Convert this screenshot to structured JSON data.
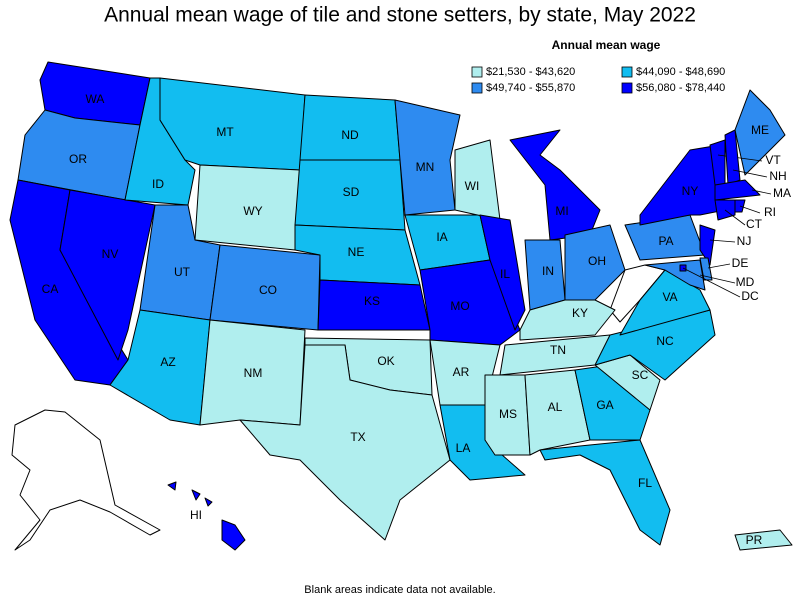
{
  "title": "Annual mean wage of tile and stone setters, by state, May 2022",
  "legend": {
    "title": "Annual mean wage",
    "items": [
      {
        "label": "$21,530 - $43,620",
        "color": "#b0eeee"
      },
      {
        "label": "$44,090 - $48,690",
        "color": "#12bdf0"
      },
      {
        "label": "$49,740 - $55,870",
        "color": "#2e8bf0"
      },
      {
        "label": "$56,080 - $78,440",
        "color": "#0000ff"
      }
    ]
  },
  "states": [
    {
      "label": "WA",
      "tier": 3
    },
    {
      "label": "OR",
      "tier": 2
    },
    {
      "label": "CA",
      "tier": 3
    },
    {
      "label": "NV",
      "tier": 3
    },
    {
      "label": "ID",
      "tier": 1
    },
    {
      "label": "MT",
      "tier": 1
    },
    {
      "label": "WY",
      "tier": 0
    },
    {
      "label": "UT",
      "tier": 2
    },
    {
      "label": "CO",
      "tier": 2
    },
    {
      "label": "AZ",
      "tier": 1
    },
    {
      "label": "NM",
      "tier": 0
    },
    {
      "label": "ND",
      "tier": 1
    },
    {
      "label": "SD",
      "tier": 1
    },
    {
      "label": "NE",
      "tier": 1
    },
    {
      "label": "KS",
      "tier": 3
    },
    {
      "label": "OK",
      "tier": 0
    },
    {
      "label": "TX",
      "tier": 0
    },
    {
      "label": "MN",
      "tier": 2
    },
    {
      "label": "IA",
      "tier": 1
    },
    {
      "label": "MO",
      "tier": 3
    },
    {
      "label": "AR",
      "tier": 0
    },
    {
      "label": "LA",
      "tier": 1
    },
    {
      "label": "WI",
      "tier": 0
    },
    {
      "label": "IL",
      "tier": 3
    },
    {
      "label": "MI",
      "tier": 3
    },
    {
      "label": "IN",
      "tier": 2
    },
    {
      "label": "OH",
      "tier": 2
    },
    {
      "label": "KY",
      "tier": 0
    },
    {
      "label": "TN",
      "tier": 0
    },
    {
      "label": "MS",
      "tier": 0
    },
    {
      "label": "AL",
      "tier": 0
    },
    {
      "label": "GA",
      "tier": 1
    },
    {
      "label": "FL",
      "tier": 1
    },
    {
      "label": "SC",
      "tier": 0
    },
    {
      "label": "NC",
      "tier": 1
    },
    {
      "label": "VA",
      "tier": 1
    },
    {
      "label": "PA",
      "tier": 2
    },
    {
      "label": "NY",
      "tier": 3
    },
    {
      "label": "NJ",
      "tier": 3
    },
    {
      "label": "DE",
      "tier": 2
    },
    {
      "label": "MD",
      "tier": 2
    },
    {
      "label": "DC",
      "tier": 3
    },
    {
      "label": "ME",
      "tier": 2
    },
    {
      "label": "VT",
      "tier": 3
    },
    {
      "label": "NH",
      "tier": 3
    },
    {
      "label": "MA",
      "tier": 3
    },
    {
      "label": "CT",
      "tier": 3
    },
    {
      "label": "RI",
      "tier": 3
    },
    {
      "label": "HI",
      "tier": 3
    },
    {
      "label": "PR",
      "tier": 0
    }
  ],
  "footnote": "Blank areas indicate data not available."
}
